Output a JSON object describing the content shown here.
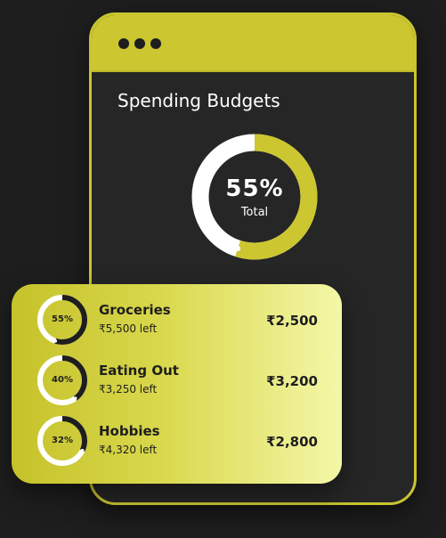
{
  "screen": {
    "title": "Spending Budgets",
    "total": {
      "value": "55%",
      "label": "Total",
      "fraction": 0.55
    }
  },
  "categories": [
    {
      "name": "Groceries",
      "percent": "55%",
      "fraction": 0.55,
      "left": "₹5,500 left",
      "amount": "₹2,500"
    },
    {
      "name": "Eating Out",
      "percent": "40%",
      "fraction": 0.4,
      "left": "₹3,250 left",
      "amount": "₹3,200"
    },
    {
      "name": "Hobbies",
      "percent": "32%",
      "fraction": 0.32,
      "left": "₹4,320 left",
      "amount": "₹2,800"
    }
  ],
  "colors": {
    "accent": "#ccc630",
    "background": "#1e1e1e",
    "screen": "#262626",
    "track": "#ffffff",
    "ring_progress": "#1e1e1e"
  }
}
